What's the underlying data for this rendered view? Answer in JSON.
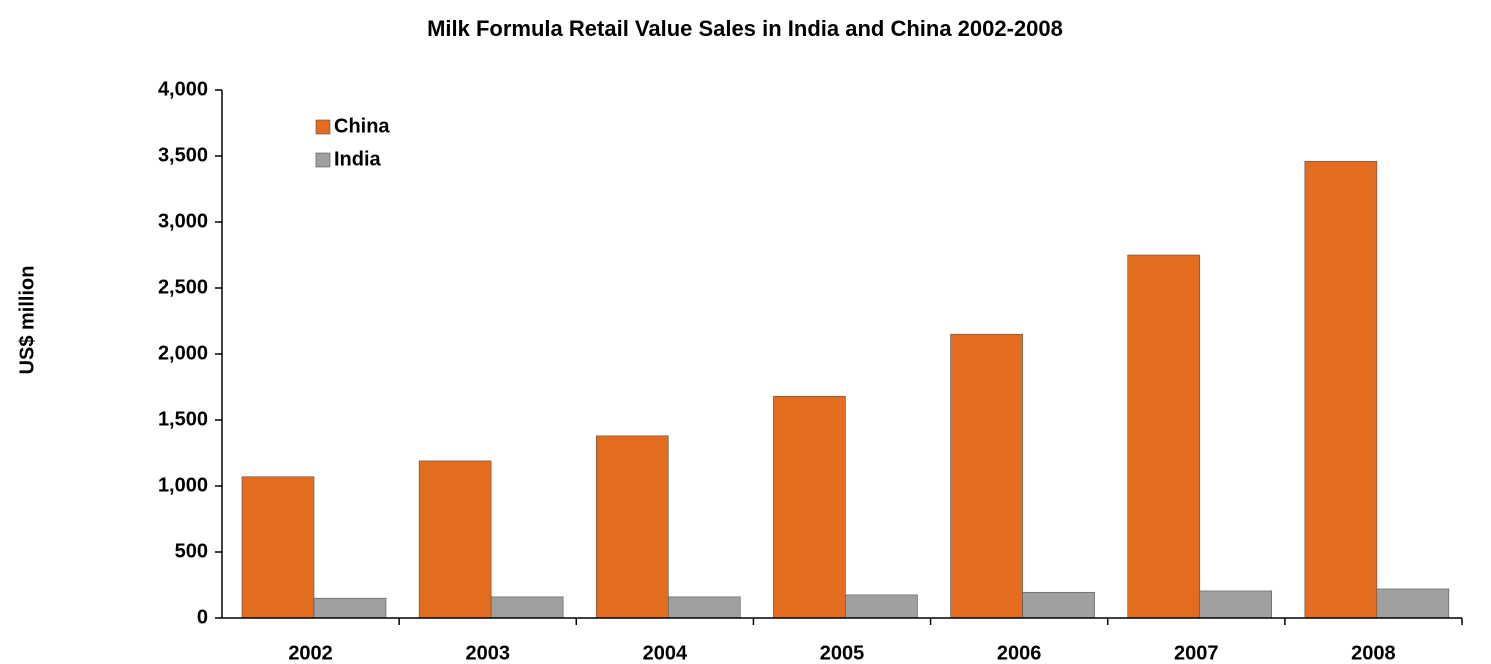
{
  "chart_data": {
    "type": "bar",
    "title": "Milk Formula Retail Value Sales in India and China 2002-2008",
    "y_label": "US$ million",
    "categories": [
      "2002",
      "2003",
      "2004",
      "2005",
      "2006",
      "2007",
      "2008"
    ],
    "series": [
      {
        "name": "China",
        "color": "#e46c1f",
        "values": [
          1070,
          1190,
          1380,
          1680,
          2150,
          2750,
          3460
        ]
      },
      {
        "name": "India",
        "color": "#a0a0a0",
        "values": [
          150,
          160,
          160,
          175,
          195,
          205,
          220
        ]
      }
    ],
    "ylim": [
      0,
      4000
    ],
    "yticks": [
      0,
      500,
      {
        "value": 1000,
        "label": "1,000"
      },
      {
        "value": 1500,
        "label": "1,500"
      },
      {
        "value": 2000,
        "label": "2,000"
      },
      {
        "value": 2500,
        "label": "2,500"
      },
      {
        "value": 3000,
        "label": "3,000"
      },
      {
        "value": 3500,
        "label": "3,500"
      },
      {
        "value": 4000,
        "label": "4,000"
      }
    ],
    "legend": "upper left"
  }
}
